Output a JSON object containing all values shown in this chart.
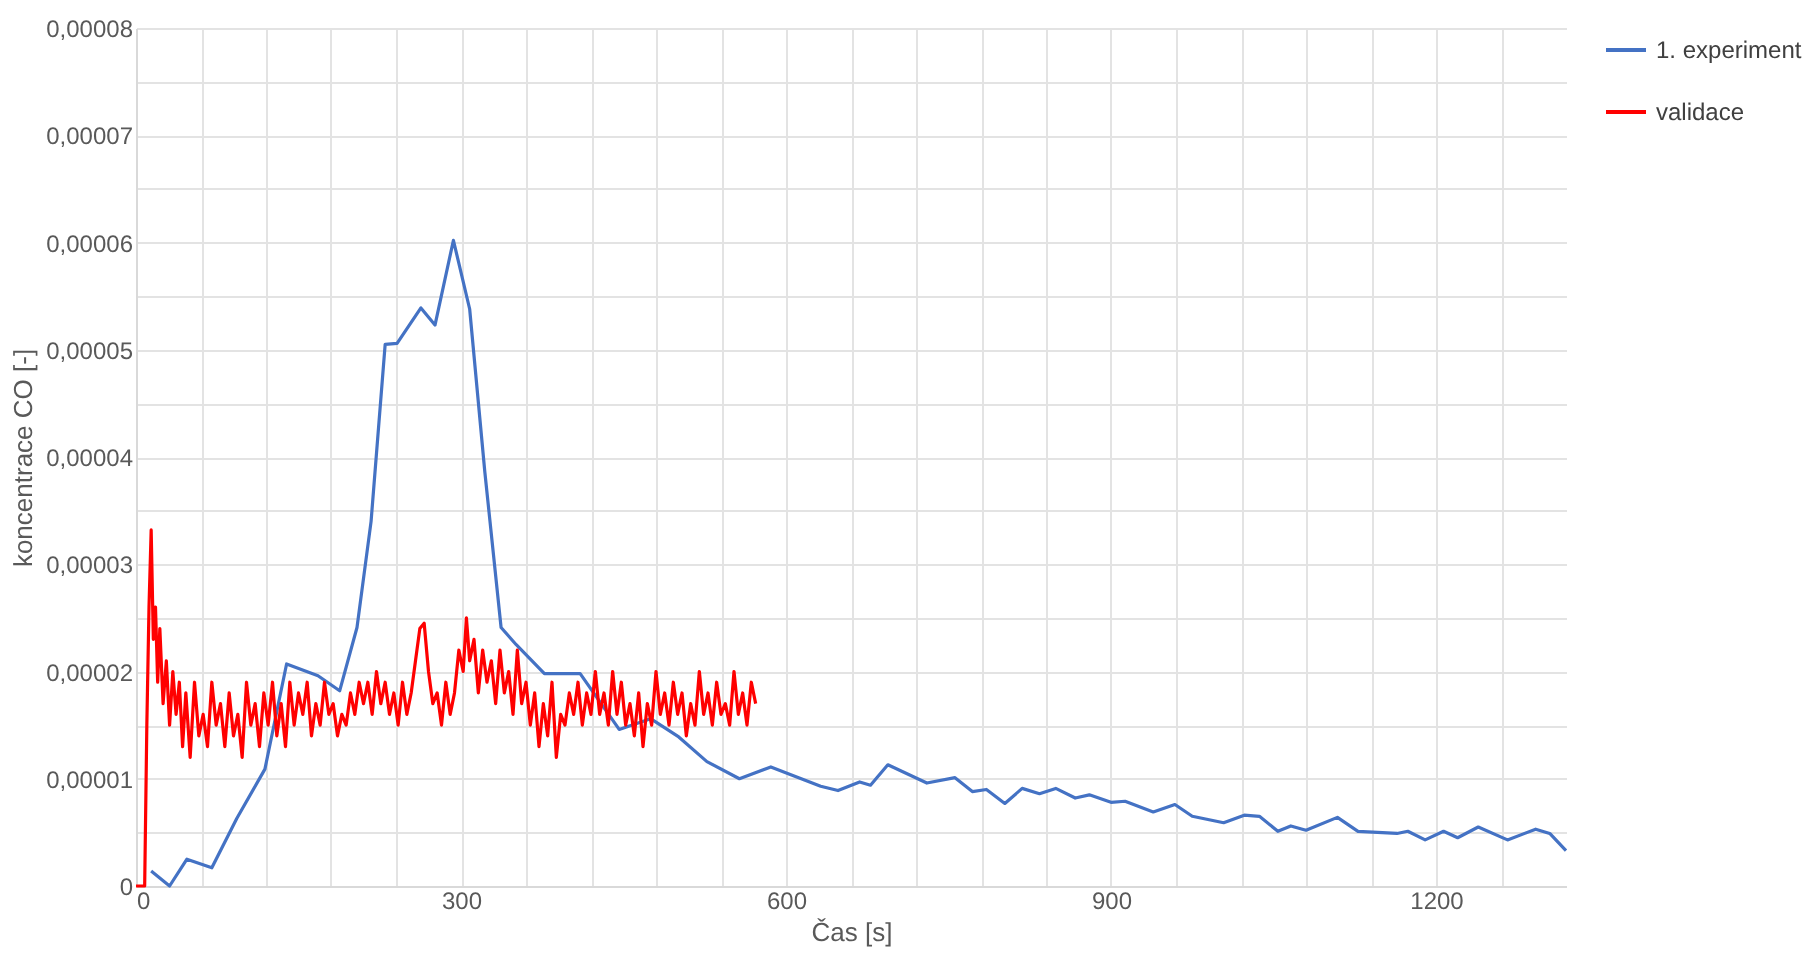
{
  "chart_data": {
    "type": "line",
    "xlabel": "Čas [s]",
    "ylabel": "koncentrace CO [-]",
    "xlim": [
      0,
      1320
    ],
    "ylim": [
      0,
      8e-05
    ],
    "xticks": [
      0,
      {
        "value": 60,
        "label": null
      },
      {
        "value": 120,
        "label": null
      },
      {
        "value": 180,
        "label": null
      },
      {
        "value": 240,
        "label": null
      },
      300,
      {
        "value": 360,
        "label": null
      },
      {
        "value": 420,
        "label": null
      },
      {
        "value": 480,
        "label": null
      },
      {
        "value": 540,
        "label": null
      },
      600,
      {
        "value": 660,
        "label": null
      },
      {
        "value": 720,
        "label": null
      },
      {
        "value": 780,
        "label": null
      },
      {
        "value": 840,
        "label": null
      },
      900,
      {
        "value": 960,
        "label": null
      },
      {
        "value": 1020,
        "label": null
      },
      {
        "value": 1080,
        "label": null
      },
      {
        "value": 1140,
        "label": null
      },
      1200,
      {
        "value": 1260,
        "label": null
      }
    ],
    "yticks": [
      0,
      {
        "value": 5e-06,
        "label": null
      },
      {
        "value": 1e-05,
        "label": "0,00001"
      },
      {
        "value": 1.5e-05,
        "label": null
      },
      {
        "value": 2e-05,
        "label": "0,00002"
      },
      {
        "value": 2.5e-05,
        "label": null
      },
      {
        "value": 3e-05,
        "label": "0,00003"
      },
      {
        "value": 3.5e-05,
        "label": null
      },
      {
        "value": 4e-05,
        "label": "0,00004"
      },
      {
        "value": 4.5e-05,
        "label": null
      },
      {
        "value": 5e-05,
        "label": "0,00005"
      },
      {
        "value": 5.5e-05,
        "label": null
      },
      {
        "value": 6e-05,
        "label": "0,00006"
      },
      {
        "value": 6.5e-05,
        "label": null
      },
      {
        "value": 7e-05,
        "label": "0,00007"
      },
      {
        "value": 7.5e-05,
        "label": null
      },
      {
        "value": 8e-05,
        "label": "0,00008"
      }
    ],
    "grid": true,
    "legend": "top right",
    "series": [
      {
        "name": "1. experiment",
        "color": "#4472c4",
        "x": [
          14,
          31,
          47,
          70,
          93,
          119,
          139,
          168,
          188,
          204,
          217,
          230,
          241,
          263,
          276,
          293,
          308,
          322,
          337,
          351,
          377,
          410,
          446,
          475,
          501,
          527,
          557,
          586,
          632,
          648,
          668,
          678,
          694,
          730,
          756,
          772,
          785,
          802,
          818,
          834,
          849,
          867,
          880,
          900,
          913,
          939,
          959,
          975,
          1004,
          1023,
          1037,
          1054,
          1066,
          1080,
          1109,
          1128,
          1164,
          1174,
          1190,
          1207,
          1220,
          1239,
          1266,
          1292,
          1305,
          1320
        ],
        "values": [
          1.4e-06,
          0,
          2.5e-06,
          1.7e-06,
          6.3e-06,
          1.09e-05,
          2.07e-05,
          1.96e-05,
          1.82e-05,
          2.41e-05,
          3.4e-05,
          5.05e-05,
          5.06e-05,
          5.39e-05,
          5.23e-05,
          6.02e-05,
          5.38e-05,
          3.86e-05,
          2.41e-05,
          2.25e-05,
          1.98e-05,
          1.98e-05,
          1.46e-05,
          1.56e-05,
          1.39e-05,
          1.16e-05,
          1e-05,
          1.11e-05,
          9.3e-06,
          8.9e-06,
          9.7e-06,
          9.4e-06,
          1.13e-05,
          9.6e-06,
          1.01e-05,
          8.8e-06,
          9e-06,
          7.7e-06,
          9.1e-06,
          8.6e-06,
          9.1e-06,
          8.2e-06,
          8.5e-06,
          7.8e-06,
          7.9e-06,
          6.9e-06,
          7.6e-06,
          6.5e-06,
          5.9e-06,
          6.6e-06,
          6.5e-06,
          5.1e-06,
          5.6e-06,
          5.2e-06,
          6.4e-06,
          5.1e-06,
          4.9e-06,
          5.1e-06,
          4.3e-06,
          5.1e-06,
          4.5e-06,
          5.5e-06,
          4.3e-06,
          5.3e-06,
          4.9e-06,
          3.3e-06
        ]
      },
      {
        "name": "validace",
        "color": "#ff0000",
        "x": [
          0,
          8,
          10,
          12,
          14,
          16,
          18,
          20,
          22,
          25,
          28,
          31,
          34,
          37,
          40,
          43,
          46,
          50,
          54,
          58,
          62,
          66,
          70,
          74,
          78,
          82,
          86,
          90,
          94,
          98,
          102,
          106,
          110,
          114,
          118,
          122,
          126,
          130,
          134,
          138,
          142,
          146,
          150,
          154,
          158,
          162,
          166,
          170,
          174,
          178,
          182,
          186,
          190,
          194,
          198,
          202,
          206,
          210,
          214,
          218,
          222,
          226,
          230,
          234,
          238,
          242,
          246,
          250,
          254,
          258,
          262,
          266,
          270,
          274,
          278,
          282,
          286,
          290,
          294,
          298,
          302,
          305,
          308,
          312,
          316,
          320,
          324,
          328,
          332,
          336,
          340,
          344,
          348,
          352,
          356,
          360,
          364,
          368,
          372,
          376,
          380,
          384,
          388,
          392,
          396,
          400,
          404,
          408,
          412,
          416,
          420,
          424,
          428,
          432,
          436,
          440,
          444,
          448,
          452,
          456,
          460,
          464,
          468,
          472,
          476,
          480,
          484,
          488,
          492,
          496,
          500,
          504,
          508,
          512,
          516,
          520,
          524,
          528,
          532,
          536,
          540,
          544,
          548,
          552,
          556,
          560,
          564,
          568,
          572
        ],
        "values": [
          0,
          0,
          1.5e-05,
          2.6e-05,
          3.32e-05,
          2.3e-05,
          2.6e-05,
          1.9e-05,
          2.4e-05,
          1.7e-05,
          2.1e-05,
          1.5e-05,
          2e-05,
          1.6e-05,
          1.9e-05,
          1.3e-05,
          1.8e-05,
          1.2e-05,
          1.9e-05,
          1.4e-05,
          1.6e-05,
          1.3e-05,
          1.9e-05,
          1.5e-05,
          1.7e-05,
          1.3e-05,
          1.8e-05,
          1.4e-05,
          1.6e-05,
          1.2e-05,
          1.9e-05,
          1.5e-05,
          1.7e-05,
          1.3e-05,
          1.8e-05,
          1.5e-05,
          1.9e-05,
          1.4e-05,
          1.7e-05,
          1.3e-05,
          1.9e-05,
          1.5e-05,
          1.8e-05,
          1.6e-05,
          1.9e-05,
          1.4e-05,
          1.7e-05,
          1.5e-05,
          1.9e-05,
          1.6e-05,
          1.7e-05,
          1.4e-05,
          1.6e-05,
          1.5e-05,
          1.8e-05,
          1.6e-05,
          1.9e-05,
          1.7e-05,
          1.9e-05,
          1.6e-05,
          2e-05,
          1.7e-05,
          1.9e-05,
          1.6e-05,
          1.8e-05,
          1.5e-05,
          1.9e-05,
          1.6e-05,
          1.8e-05,
          2.1e-05,
          2.4e-05,
          2.45e-05,
          2e-05,
          1.7e-05,
          1.8e-05,
          1.5e-05,
          1.9e-05,
          1.6e-05,
          1.8e-05,
          2.2e-05,
          2e-05,
          2.5e-05,
          2.1e-05,
          2.3e-05,
          1.8e-05,
          2.2e-05,
          1.9e-05,
          2.1e-05,
          1.7e-05,
          2.2e-05,
          1.8e-05,
          2e-05,
          1.6e-05,
          2.2e-05,
          1.7e-05,
          1.9e-05,
          1.5e-05,
          1.8e-05,
          1.3e-05,
          1.7e-05,
          1.4e-05,
          1.9e-05,
          1.2e-05,
          1.6e-05,
          1.5e-05,
          1.8e-05,
          1.6e-05,
          1.9e-05,
          1.5e-05,
          1.8e-05,
          1.6e-05,
          2e-05,
          1.6e-05,
          1.8e-05,
          1.5e-05,
          2e-05,
          1.6e-05,
          1.9e-05,
          1.5e-05,
          1.7e-05,
          1.4e-05,
          1.8e-05,
          1.3e-05,
          1.7e-05,
          1.5e-05,
          2e-05,
          1.6e-05,
          1.8e-05,
          1.5e-05,
          1.9e-05,
          1.6e-05,
          1.8e-05,
          1.4e-05,
          1.7e-05,
          1.5e-05,
          2e-05,
          1.6e-05,
          1.8e-05,
          1.5e-05,
          1.9e-05,
          1.6e-05,
          1.7e-05,
          1.5e-05,
          2e-05,
          1.6e-05,
          1.8e-05,
          1.5e-05,
          1.9e-05,
          1.7e-05
        ]
      }
    ]
  }
}
